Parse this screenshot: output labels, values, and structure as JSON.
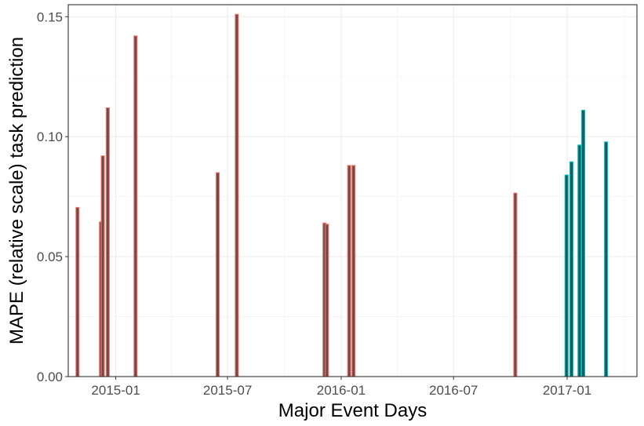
{
  "chart_data": {
    "type": "bar",
    "xlabel": "Major Event Days",
    "ylabel": "MAPE (relative scale) task prediction",
    "ylim": [
      0,
      0.155
    ],
    "xlim": [
      "2014-10-16",
      "2017-04-24"
    ],
    "grid": true,
    "legend": "none",
    "x_ticks": [
      {
        "date": "2015-01-01",
        "label": "2015-01"
      },
      {
        "date": "2015-07-01",
        "label": "2015-07"
      },
      {
        "date": "2016-01-01",
        "label": "2016-01"
      },
      {
        "date": "2016-07-01",
        "label": "2016-07"
      },
      {
        "date": "2017-01-01",
        "label": "2017-01"
      }
    ],
    "y_ticks": [
      {
        "value": 0.0,
        "label": "0.00"
      },
      {
        "value": 0.05,
        "label": "0.05"
      },
      {
        "value": 0.1,
        "label": "0.10"
      },
      {
        "value": 0.15,
        "label": "0.15"
      }
    ],
    "series": [
      {
        "color": "#F8766D",
        "fill": "#6E4A48",
        "points": [
          {
            "date": "2014-10-31",
            "value": 0.0705
          },
          {
            "date": "2014-12-08",
            "value": 0.0645
          },
          {
            "date": "2014-12-11",
            "value": 0.092
          },
          {
            "date": "2014-12-19",
            "value": 0.112
          },
          {
            "date": "2015-02-02",
            "value": 0.142
          },
          {
            "date": "2015-06-15",
            "value": 0.085
          },
          {
            "date": "2015-07-16",
            "value": 0.151
          },
          {
            "date": "2015-12-05",
            "value": 0.064
          },
          {
            "date": "2015-12-09",
            "value": 0.0635
          },
          {
            "date": "2016-01-14",
            "value": 0.088
          },
          {
            "date": "2016-01-21",
            "value": 0.088
          },
          {
            "date": "2016-10-09",
            "value": 0.0765
          }
        ]
      },
      {
        "color": "#00BFC4",
        "fill": "#1E5A5C",
        "points": [
          {
            "date": "2016-12-31",
            "value": 0.084
          },
          {
            "date": "2017-01-08",
            "value": 0.0895
          },
          {
            "date": "2017-01-21",
            "value": 0.0965
          },
          {
            "date": "2017-01-27",
            "value": 0.111
          },
          {
            "date": "2017-03-05",
            "value": 0.0978
          }
        ]
      }
    ]
  }
}
